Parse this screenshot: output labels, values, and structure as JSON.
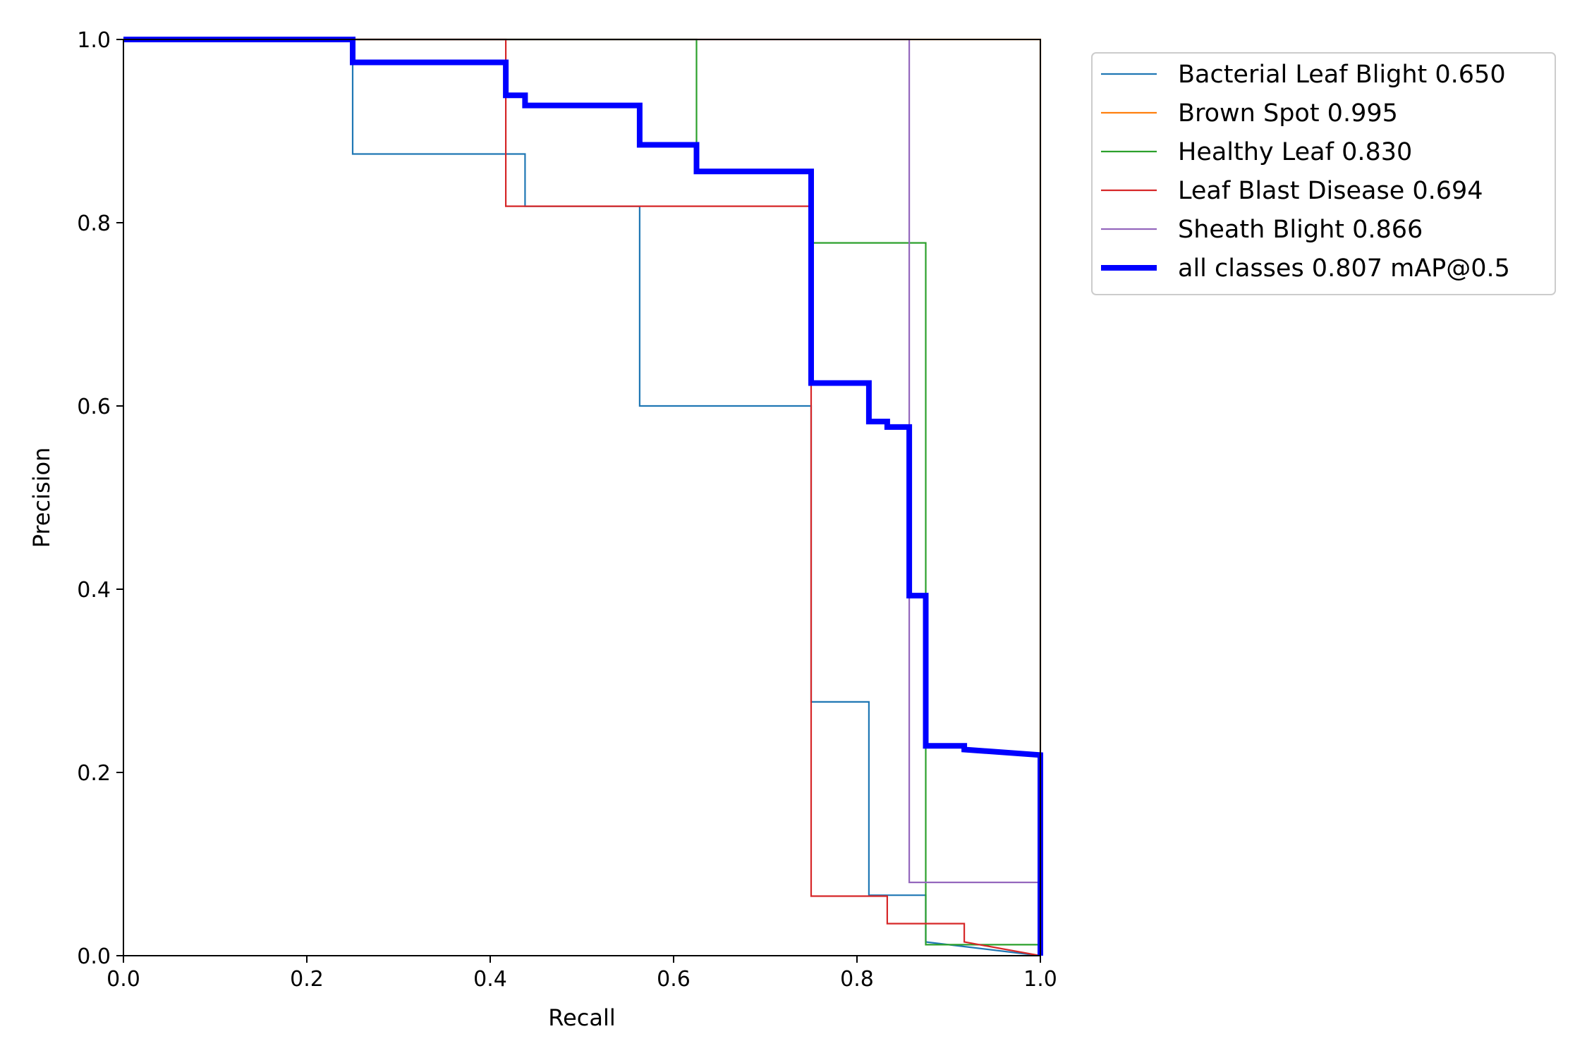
{
  "chart_data": {
    "type": "line",
    "title": "",
    "xlabel": "Recall",
    "ylabel": "Precision",
    "xlim": [
      0,
      1
    ],
    "ylim": [
      0,
      1
    ],
    "x_ticks": [
      "0.0",
      "0.2",
      "0.4",
      "0.6",
      "0.8",
      "1.0"
    ],
    "y_ticks": [
      "0.0",
      "0.2",
      "0.4",
      "0.6",
      "0.8",
      "1.0"
    ],
    "grid": false,
    "legend_position": "outside-top-right",
    "series": [
      {
        "name": "Bacterial Leaf Blight 0.650",
        "color": "#1f77b4",
        "emphasis": false,
        "points": [
          [
            0,
            1
          ],
          [
            0.25,
            1
          ],
          [
            0.25,
            0.875
          ],
          [
            0.438,
            0.875
          ],
          [
            0.438,
            0.818
          ],
          [
            0.563,
            0.818
          ],
          [
            0.563,
            0.6
          ],
          [
            0.75,
            0.6
          ],
          [
            0.75,
            0.277
          ],
          [
            0.813,
            0.277
          ],
          [
            0.813,
            0.066
          ],
          [
            0.875,
            0.066
          ],
          [
            0.875,
            0.015
          ],
          [
            1,
            0.0
          ]
        ]
      },
      {
        "name": "Brown Spot 0.995",
        "color": "#ff7f0e",
        "emphasis": false,
        "points": [
          [
            0,
            1
          ],
          [
            1,
            1
          ],
          [
            1,
            0
          ]
        ]
      },
      {
        "name": "Healthy Leaf 0.830",
        "color": "#2ca02c",
        "emphasis": false,
        "points": [
          [
            0,
            1
          ],
          [
            0.625,
            1
          ],
          [
            0.625,
            0.855
          ],
          [
            0.75,
            0.855
          ],
          [
            0.75,
            0.778
          ],
          [
            0.875,
            0.778
          ],
          [
            0.875,
            0.012
          ],
          [
            1,
            0.012
          ],
          [
            1,
            0
          ]
        ]
      },
      {
        "name": "Leaf Blast Disease 0.694",
        "color": "#d62728",
        "emphasis": false,
        "points": [
          [
            0,
            1
          ],
          [
            0.417,
            1
          ],
          [
            0.417,
            0.818
          ],
          [
            0.75,
            0.818
          ],
          [
            0.75,
            0.065
          ],
          [
            0.833,
            0.065
          ],
          [
            0.833,
            0.035
          ],
          [
            0.917,
            0.035
          ],
          [
            0.917,
            0.015
          ],
          [
            1,
            0
          ]
        ]
      },
      {
        "name": "Sheath Blight 0.866",
        "color": "#9467bd",
        "emphasis": false,
        "points": [
          [
            0,
            1
          ],
          [
            0.857,
            1
          ],
          [
            0.857,
            0.08
          ],
          [
            1,
            0.08
          ],
          [
            1,
            0
          ]
        ]
      },
      {
        "name": "all classes 0.807 mAP@0.5",
        "color": "#0000ff",
        "emphasis": true,
        "points": [
          [
            0,
            1
          ],
          [
            0.25,
            1
          ],
          [
            0.25,
            0.975
          ],
          [
            0.417,
            0.975
          ],
          [
            0.417,
            0.939
          ],
          [
            0.438,
            0.939
          ],
          [
            0.438,
            0.928
          ],
          [
            0.563,
            0.928
          ],
          [
            0.563,
            0.885
          ],
          [
            0.625,
            0.885
          ],
          [
            0.625,
            0.856
          ],
          [
            0.75,
            0.856
          ],
          [
            0.75,
            0.625
          ],
          [
            0.813,
            0.625
          ],
          [
            0.813,
            0.583
          ],
          [
            0.833,
            0.583
          ],
          [
            0.833,
            0.577
          ],
          [
            0.857,
            0.577
          ],
          [
            0.857,
            0.393
          ],
          [
            0.875,
            0.393
          ],
          [
            0.875,
            0.229
          ],
          [
            0.917,
            0.229
          ],
          [
            0.917,
            0.225
          ],
          [
            1,
            0.219
          ],
          [
            1,
            0
          ]
        ]
      }
    ]
  }
}
